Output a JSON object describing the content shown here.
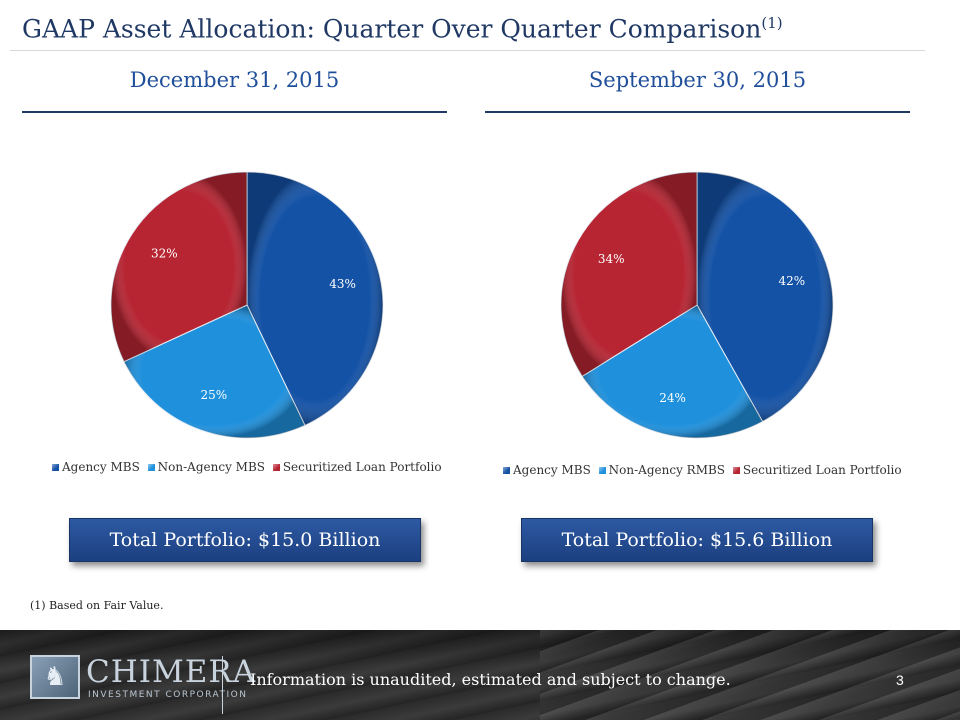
{
  "slide": {
    "title": "GAAP Asset Allocation: Quarter Over Quarter Comparison",
    "title_superscript": "(1)",
    "footnote": "(1) Based on Fair Value.",
    "page_number": "3"
  },
  "colors": {
    "agency": "#1452a6",
    "non_agency": "#1f90dc",
    "securitized": "#b72533"
  },
  "chart_data": [
    {
      "type": "pie",
      "title": "December 31, 2015",
      "categories": [
        "Agency MBS",
        "Non-Agency MBS",
        "Securitized Loan Portfolio"
      ],
      "values": [
        43,
        25,
        32
      ],
      "labels": [
        "43%",
        "25%",
        "32%"
      ],
      "colors": [
        "#1452a6",
        "#1f90dc",
        "#b72533"
      ],
      "legend_position": "bottom",
      "total": "Total Portfolio: $15.0 Billion"
    },
    {
      "type": "pie",
      "title": "September 30, 2015",
      "categories": [
        "Agency MBS",
        "Non-Agency RMBS",
        "Securitized Loan Portfolio"
      ],
      "values": [
        42,
        24,
        34
      ],
      "labels": [
        "42%",
        "24%",
        "34%"
      ],
      "colors": [
        "#1452a6",
        "#1f90dc",
        "#b72533"
      ],
      "legend_position": "bottom",
      "total": "Total Portfolio: $15.6 Billion"
    }
  ],
  "footer": {
    "logo_name": "CHIMERA",
    "logo_subtitle": "INVESTMENT CORPORATION",
    "disclaimer": "Information is unaudited, estimated and subject to change."
  }
}
